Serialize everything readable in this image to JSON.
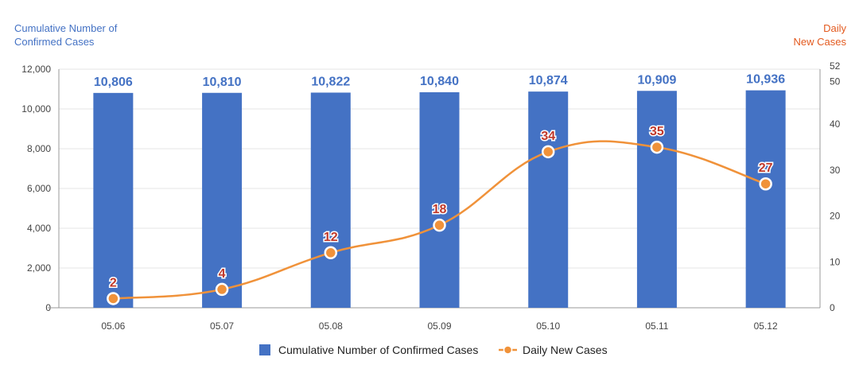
{
  "chart_data": {
    "type": "bar",
    "categories": [
      "05.06",
      "05.07",
      "05.08",
      "05.09",
      "05.10",
      "05.11",
      "05.12"
    ],
    "series": [
      {
        "name": "Cumulative Number of Confirmed Cases",
        "type": "bar",
        "axis": "left",
        "values": [
          10806,
          10810,
          10822,
          10840,
          10874,
          10909,
          10936
        ],
        "labels": [
          "10,806",
          "10,810",
          "10,822",
          "10,840",
          "10,874",
          "10,909",
          "10,936"
        ],
        "color": "#4472c4"
      },
      {
        "name": "Daily New Cases",
        "type": "line",
        "axis": "right",
        "values": [
          2,
          4,
          12,
          18,
          34,
          35,
          27
        ],
        "labels": [
          "2",
          "4",
          "12",
          "18",
          "34",
          "35",
          "27"
        ],
        "color": "#f0923a"
      }
    ],
    "y_left": {
      "title_lines": [
        "Cumulative Number of",
        "Confirmed Cases"
      ],
      "ylim": [
        0,
        12000
      ],
      "ticks": [
        0,
        2000,
        4000,
        6000,
        8000,
        10000,
        12000
      ],
      "tick_labels": [
        "0",
        "2,000",
        "4,000",
        "6,000",
        "8,000",
        "10,000",
        "12,000"
      ]
    },
    "y_right": {
      "title_lines": [
        "Daily",
        "New Cases"
      ],
      "ylim": [
        0,
        52
      ],
      "ticks": [
        0,
        10,
        20,
        30,
        40,
        50,
        52
      ],
      "tick_labels": [
        "0",
        "10",
        "20",
        "30",
        "40",
        "50",
        "52"
      ]
    },
    "grid": true,
    "legend_position": "bottom-center",
    "colors": {
      "left_axis_title": "#4472c4",
      "right_axis_title": "#e35a1f",
      "line_label": "#c0392b"
    }
  }
}
